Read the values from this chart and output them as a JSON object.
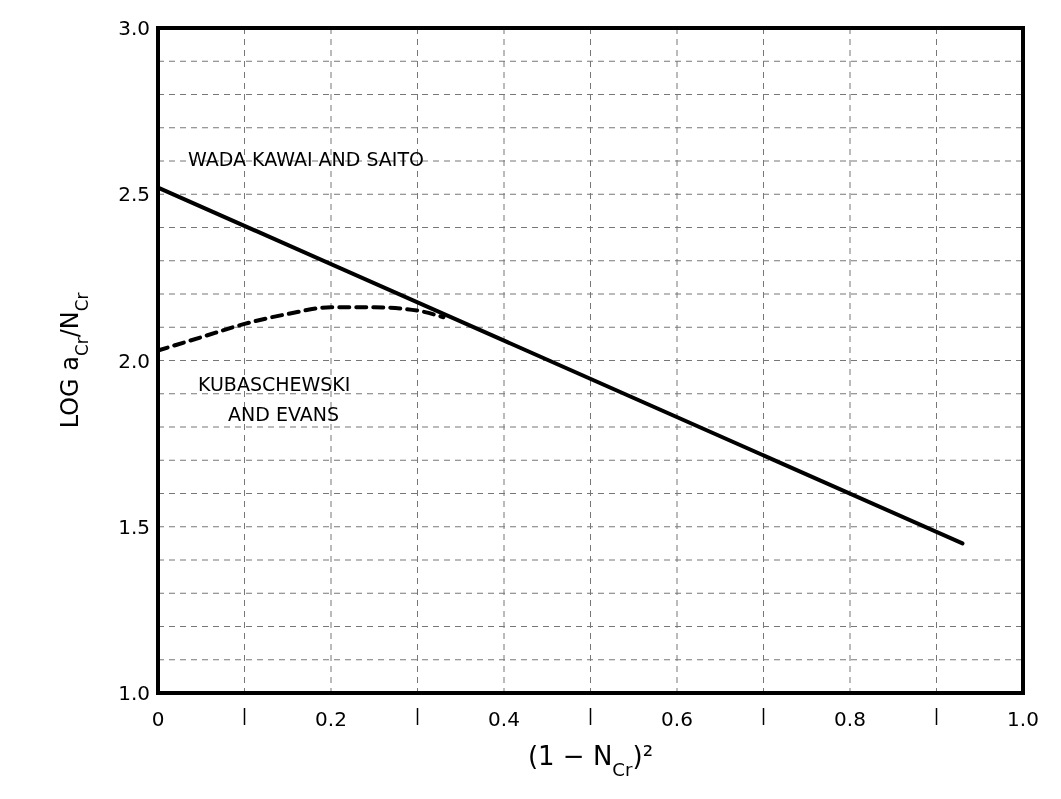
{
  "chart_data": {
    "type": "line",
    "xlabel": "(1 − N$_{Cr}$)²",
    "ylabel": "LOG a$_{Cr}$/N$_{Cr}$",
    "xlim": [
      0,
      1.0
    ],
    "ylim": [
      1.0,
      3.0
    ],
    "xticks": [
      0,
      {
        "value": 0.1,
        "label": null
      },
      0.2,
      {
        "value": 0.3,
        "label": null
      },
      0.4,
      {
        "value": 0.5,
        "label": null
      },
      0.6,
      {
        "value": 0.7,
        "label": null
      },
      0.8,
      {
        "value": 0.9,
        "label": null
      },
      {
        "value": 1.0,
        "label": "1.0"
      }
    ],
    "yticks": [
      {
        "value": 1.0,
        "label": "1.0"
      },
      1.5,
      {
        "value": 2.0,
        "label": "2.0"
      },
      2.5,
      {
        "value": 3.0,
        "label": "3.0"
      }
    ],
    "grid": true,
    "marker": "none",
    "series": [
      {
        "name": "WADA KAWAI AND SAITO",
        "color": "#000000",
        "line_style": "solid",
        "x": [
          0,
          0.93
        ],
        "values": [
          2.52,
          1.45
        ]
      },
      {
        "name": "KUBASCHEWSKI AND EVANS",
        "color": "#000000",
        "line_style": "dashed",
        "x": [
          0,
          0.05,
          0.1,
          0.15,
          0.2,
          0.25,
          0.3,
          0.33
        ],
        "values": [
          2.03,
          2.07,
          2.11,
          2.14,
          2.16,
          2.16,
          2.15,
          2.13
        ]
      }
    ]
  }
}
